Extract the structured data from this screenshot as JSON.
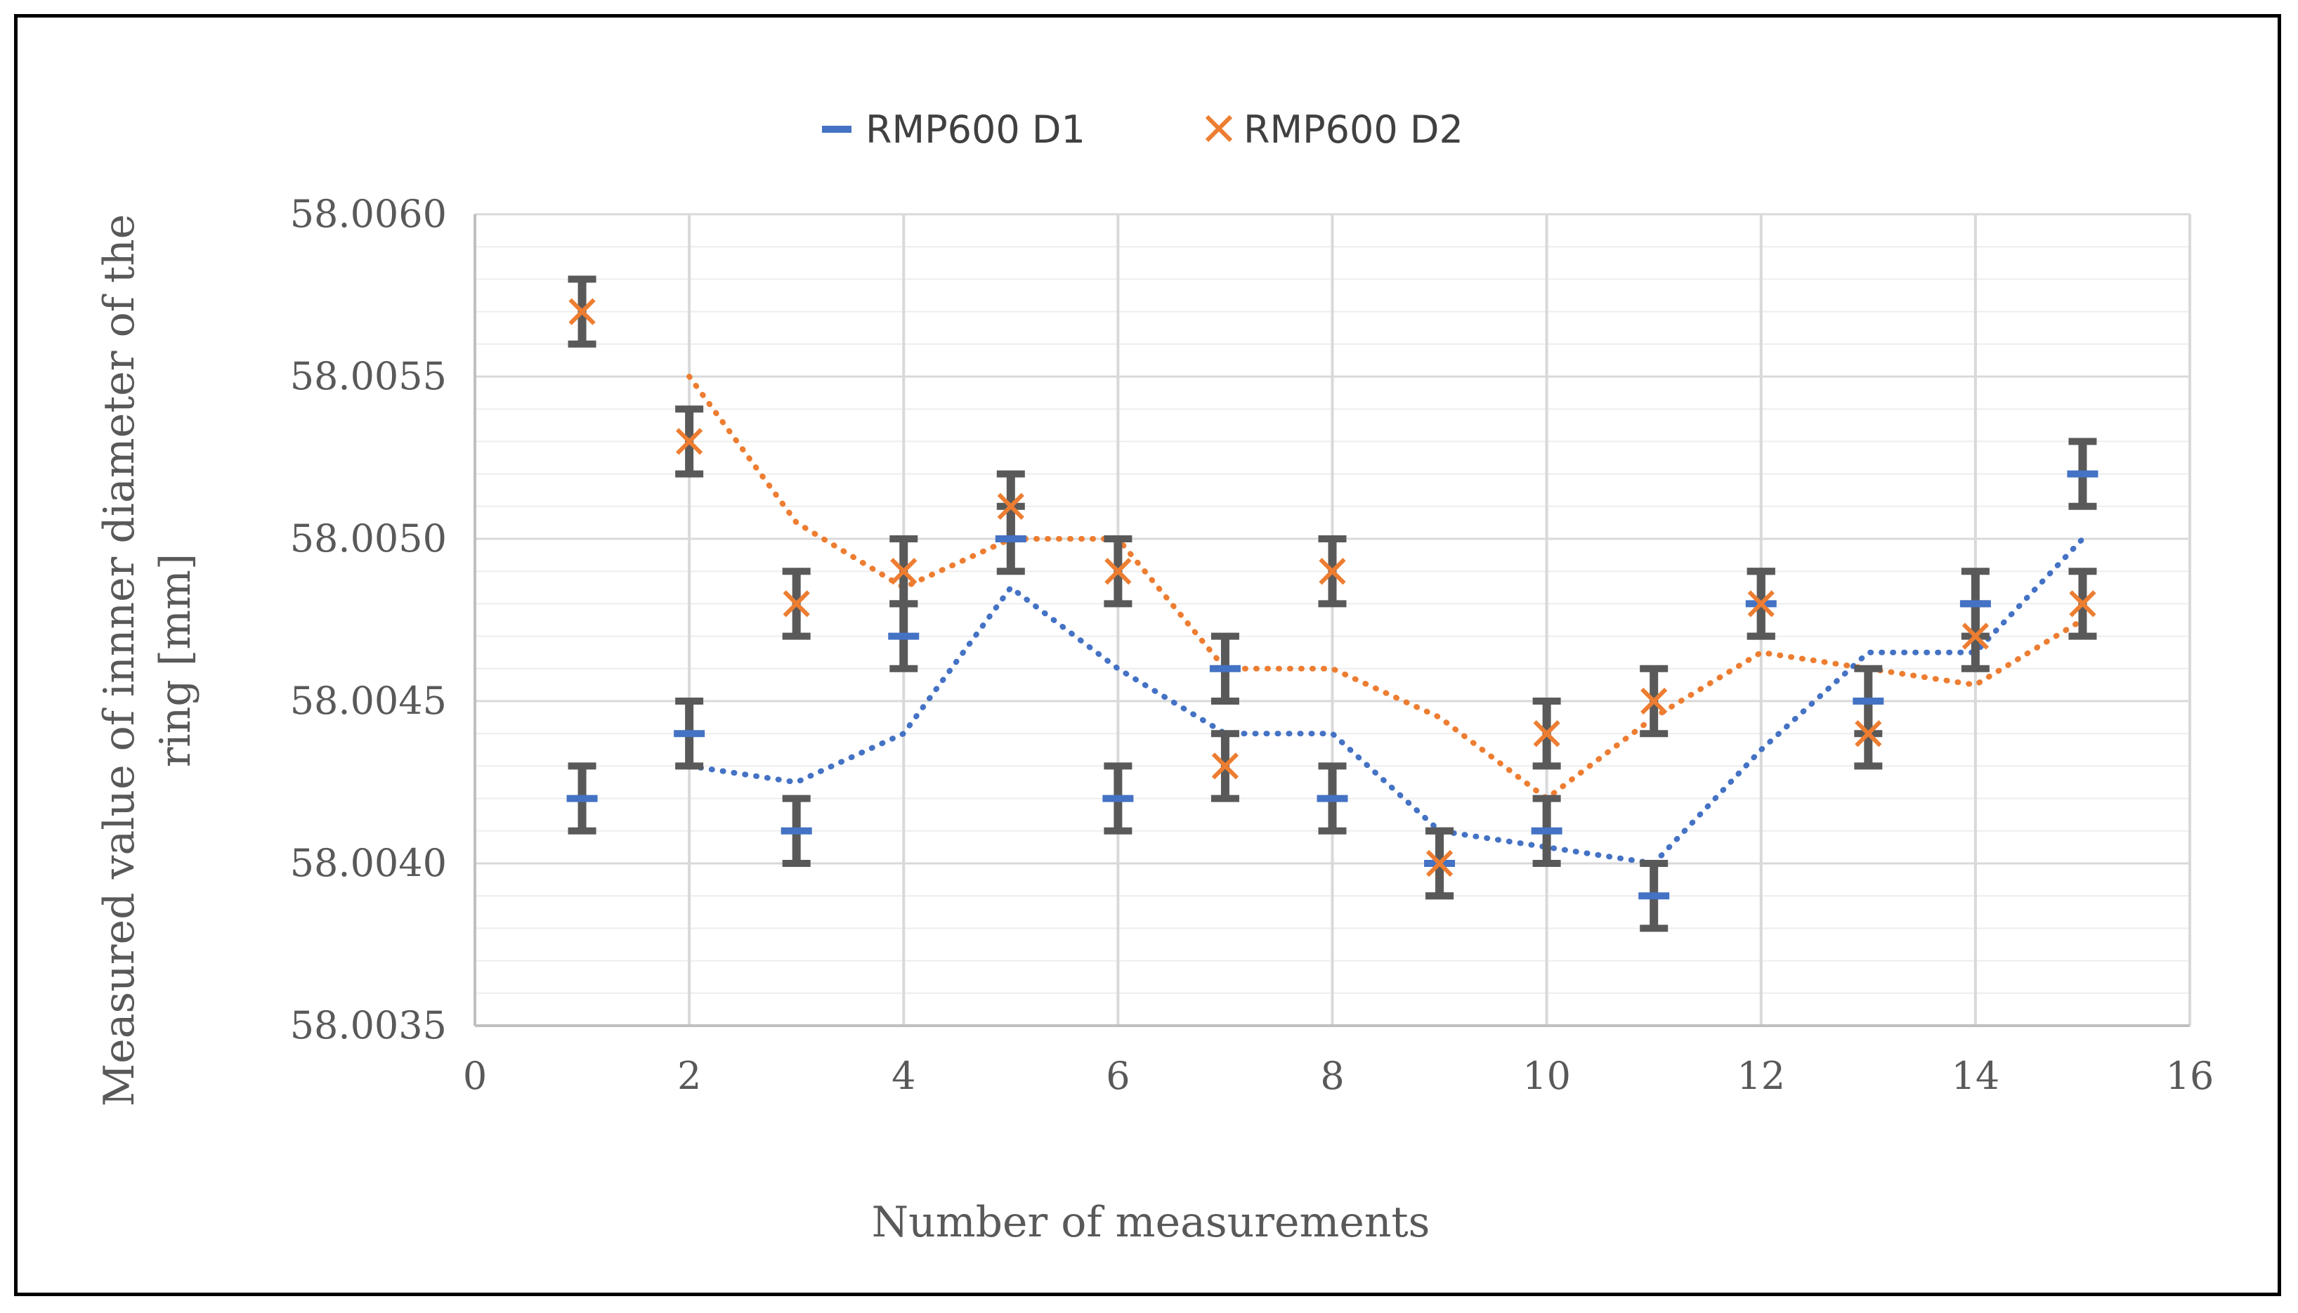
{
  "chart_data": {
    "type": "scatter",
    "title": "",
    "xlabel": "Number of measurements",
    "ylabel_lines": [
      "Measured value of innner diameter of the",
      "ring [mm]"
    ],
    "xlim": [
      0,
      16
    ],
    "ylim": [
      58.0035,
      58.006
    ],
    "x_ticks": [
      "0",
      "2",
      "4",
      "6",
      "8",
      "10",
      "12",
      "14",
      "16"
    ],
    "y_ticks": [
      "58.0035",
      "58.0040",
      "58.0045",
      "58.0050",
      "58.0055",
      "58.0060"
    ],
    "x_tick_values": [
      0,
      2,
      4,
      6,
      8,
      10,
      12,
      14,
      16
    ],
    "y_tick_values": [
      58.0035,
      58.004,
      58.0045,
      58.005,
      58.0055,
      58.006
    ],
    "minor_y_step": 0.0001,
    "error_bar": 0.0001,
    "legend_position": "top-center",
    "series": [
      {
        "name": "RMP600 D1",
        "marker": "dash",
        "color": "#4472C4",
        "x": [
          1,
          2,
          3,
          4,
          5,
          6,
          7,
          8,
          9,
          10,
          11,
          12,
          13,
          14,
          15
        ],
        "values": [
          58.0042,
          58.0044,
          58.0041,
          58.0047,
          58.005,
          58.0042,
          58.0046,
          58.0042,
          58.004,
          58.0041,
          58.0039,
          58.0048,
          58.0045,
          58.0048,
          58.0052
        ],
        "trend_x": [
          2,
          3,
          4,
          5,
          6,
          7,
          8,
          9,
          10,
          11,
          12,
          13,
          14,
          15
        ],
        "trend_values": [
          58.0043,
          58.00425,
          58.0044,
          58.00485,
          58.0046,
          58.0044,
          58.0044,
          58.0041,
          58.00405,
          58.004,
          58.00435,
          58.00465,
          58.00465,
          58.005
        ]
      },
      {
        "name": "RMP600 D2",
        "marker": "x",
        "color": "#ED7D31",
        "x": [
          1,
          2,
          3,
          4,
          5,
          6,
          7,
          8,
          9,
          10,
          11,
          12,
          13,
          14,
          15
        ],
        "values": [
          58.0057,
          58.0053,
          58.0048,
          58.0049,
          58.0051,
          58.0049,
          58.0043,
          58.0049,
          58.004,
          58.0044,
          58.0045,
          58.0048,
          58.0044,
          58.0047,
          58.0048
        ],
        "trend_x": [
          2,
          3,
          4,
          5,
          6,
          7,
          8,
          9,
          10,
          11,
          12,
          13,
          14,
          15
        ],
        "trend_values": [
          58.0055,
          58.00505,
          58.00485,
          58.005,
          58.005,
          58.0046,
          58.0046,
          58.00445,
          58.0042,
          58.00445,
          58.00465,
          58.0046,
          58.00455,
          58.00475
        ]
      }
    ],
    "colors": {
      "grid": "#D9D9D9",
      "axis": "#BFBFBF",
      "error_bar": "#595959"
    }
  }
}
